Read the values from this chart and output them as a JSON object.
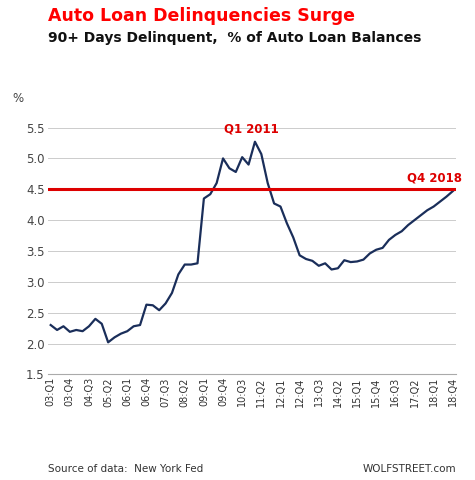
{
  "title1": "Auto Loan Delinquencies Surge",
  "title2": "90+ Days Delinquent,  % of Auto Loan Balances",
  "title1_color": "#ff0000",
  "title2_color": "#111111",
  "ylabel": "%",
  "ylim": [
    1.5,
    5.7
  ],
  "yticks": [
    1.5,
    2.0,
    2.5,
    3.0,
    3.5,
    4.0,
    4.5,
    5.0,
    5.5
  ],
  "reference_line_y": 4.5,
  "reference_line_color": "#dd0000",
  "annotation_q1_2011": "Q1 2011",
  "annotation_q4_2018": "Q4 2018",
  "annotation_color": "#dd0000",
  "line_color": "#1a2e5a",
  "source_text": "Source of data:  New York Fed",
  "watermark": "WOLFSTREET.com",
  "data": [
    [
      "03:Q1",
      2.3
    ],
    [
      "03:Q2",
      2.22
    ],
    [
      "03:Q3",
      2.28
    ],
    [
      "03:Q4",
      2.19
    ],
    [
      "04:Q1",
      2.22
    ],
    [
      "04:Q2",
      2.2
    ],
    [
      "04:Q3",
      2.28
    ],
    [
      "04:Q4",
      2.4
    ],
    [
      "05:Q1",
      2.32
    ],
    [
      "05:Q2",
      2.02
    ],
    [
      "05:Q3",
      2.1
    ],
    [
      "05:Q4",
      2.16
    ],
    [
      "06:Q1",
      2.2
    ],
    [
      "06:Q2",
      2.28
    ],
    [
      "06:Q3",
      2.3
    ],
    [
      "06:Q4",
      2.63
    ],
    [
      "07:Q1",
      2.62
    ],
    [
      "07:Q2",
      2.54
    ],
    [
      "07:Q3",
      2.65
    ],
    [
      "07:Q4",
      2.82
    ],
    [
      "08:Q1",
      3.12
    ],
    [
      "08:Q2",
      3.28
    ],
    [
      "08:Q3",
      3.28
    ],
    [
      "08:Q4",
      3.3
    ],
    [
      "09:Q1",
      4.35
    ],
    [
      "09:Q2",
      4.42
    ],
    [
      "09:Q3",
      4.6
    ],
    [
      "09:Q4",
      5.0
    ],
    [
      "10:Q1",
      4.84
    ],
    [
      "10:Q2",
      4.78
    ],
    [
      "10:Q3",
      5.02
    ],
    [
      "10:Q4",
      4.9
    ],
    [
      "11:Q1",
      5.27
    ],
    [
      "11:Q2",
      5.07
    ],
    [
      "11:Q3",
      4.6
    ],
    [
      "11:Q4",
      4.27
    ],
    [
      "12:Q1",
      4.22
    ],
    [
      "12:Q2",
      3.95
    ],
    [
      "12:Q3",
      3.72
    ],
    [
      "12:Q4",
      3.43
    ],
    [
      "13:Q1",
      3.37
    ],
    [
      "13:Q2",
      3.34
    ],
    [
      "13:Q3",
      3.26
    ],
    [
      "13:Q4",
      3.3
    ],
    [
      "14:Q1",
      3.2
    ],
    [
      "14:Q2",
      3.22
    ],
    [
      "14:Q3",
      3.35
    ],
    [
      "14:Q4",
      3.32
    ],
    [
      "15:Q1",
      3.33
    ],
    [
      "15:Q2",
      3.36
    ],
    [
      "15:Q3",
      3.46
    ],
    [
      "15:Q4",
      3.52
    ],
    [
      "16:Q1",
      3.55
    ],
    [
      "16:Q2",
      3.68
    ],
    [
      "16:Q3",
      3.76
    ],
    [
      "16:Q4",
      3.82
    ],
    [
      "17:Q1",
      3.92
    ],
    [
      "17:Q2",
      4.0
    ],
    [
      "17:Q3",
      4.08
    ],
    [
      "17:Q4",
      4.16
    ],
    [
      "18:Q1",
      4.22
    ],
    [
      "18:Q2",
      4.3
    ],
    [
      "18:Q3",
      4.38
    ],
    [
      "18:Q4",
      4.47
    ]
  ],
  "x_tick_indices": [
    0,
    3,
    6,
    9,
    12,
    15,
    18,
    21,
    24,
    27,
    30,
    33,
    36,
    39,
    42,
    45,
    48,
    51,
    54,
    57,
    60,
    63
  ],
  "x_tick_labels": [
    "03:Q1",
    "03:Q4",
    "04:Q3",
    "05:Q2",
    "06:Q1",
    "06:Q4",
    "07:Q3",
    "08:Q2",
    "09:Q1",
    "09:Q4",
    "10:Q3",
    "11:Q2",
    "12:Q1",
    "12:Q4",
    "13:Q3",
    "14:Q2",
    "15:Q1",
    "15:Q4",
    "16:Q3",
    "17:Q2",
    "18:Q1",
    "18:Q4"
  ]
}
